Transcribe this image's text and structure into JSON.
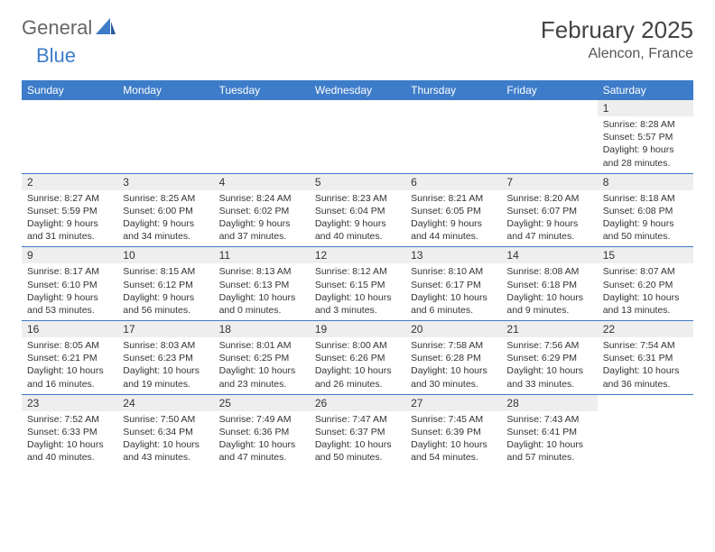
{
  "logo": {
    "general": "General",
    "blue": "Blue"
  },
  "title": {
    "monthYear": "February 2025",
    "location": "Alencon, France"
  },
  "dayNames": [
    "Sunday",
    "Monday",
    "Tuesday",
    "Wednesday",
    "Thursday",
    "Friday",
    "Saturday"
  ],
  "colors": {
    "headerBg": "#3d7cc9",
    "headerText": "#ffffff",
    "dayNumBg": "#eeeeee",
    "weekBorder": "#3d7cc9",
    "textColor": "#333333",
    "logoGray": "#666666",
    "logoBlue": "#3d7cc9"
  },
  "labels": {
    "sunrise": "Sunrise:",
    "sunset": "Sunset:",
    "daylight": "Daylight:"
  },
  "weeks": [
    [
      {
        "empty": true
      },
      {
        "empty": true
      },
      {
        "empty": true
      },
      {
        "empty": true
      },
      {
        "empty": true
      },
      {
        "empty": true
      },
      {
        "day": "1",
        "sunrise": "8:28 AM",
        "sunset": "5:57 PM",
        "daylight": "9 hours and 28 minutes."
      }
    ],
    [
      {
        "day": "2",
        "sunrise": "8:27 AM",
        "sunset": "5:59 PM",
        "daylight": "9 hours and 31 minutes."
      },
      {
        "day": "3",
        "sunrise": "8:25 AM",
        "sunset": "6:00 PM",
        "daylight": "9 hours and 34 minutes."
      },
      {
        "day": "4",
        "sunrise": "8:24 AM",
        "sunset": "6:02 PM",
        "daylight": "9 hours and 37 minutes."
      },
      {
        "day": "5",
        "sunrise": "8:23 AM",
        "sunset": "6:04 PM",
        "daylight": "9 hours and 40 minutes."
      },
      {
        "day": "6",
        "sunrise": "8:21 AM",
        "sunset": "6:05 PM",
        "daylight": "9 hours and 44 minutes."
      },
      {
        "day": "7",
        "sunrise": "8:20 AM",
        "sunset": "6:07 PM",
        "daylight": "9 hours and 47 minutes."
      },
      {
        "day": "8",
        "sunrise": "8:18 AM",
        "sunset": "6:08 PM",
        "daylight": "9 hours and 50 minutes."
      }
    ],
    [
      {
        "day": "9",
        "sunrise": "8:17 AM",
        "sunset": "6:10 PM",
        "daylight": "9 hours and 53 minutes."
      },
      {
        "day": "10",
        "sunrise": "8:15 AM",
        "sunset": "6:12 PM",
        "daylight": "9 hours and 56 minutes."
      },
      {
        "day": "11",
        "sunrise": "8:13 AM",
        "sunset": "6:13 PM",
        "daylight": "10 hours and 0 minutes."
      },
      {
        "day": "12",
        "sunrise": "8:12 AM",
        "sunset": "6:15 PM",
        "daylight": "10 hours and 3 minutes."
      },
      {
        "day": "13",
        "sunrise": "8:10 AM",
        "sunset": "6:17 PM",
        "daylight": "10 hours and 6 minutes."
      },
      {
        "day": "14",
        "sunrise": "8:08 AM",
        "sunset": "6:18 PM",
        "daylight": "10 hours and 9 minutes."
      },
      {
        "day": "15",
        "sunrise": "8:07 AM",
        "sunset": "6:20 PM",
        "daylight": "10 hours and 13 minutes."
      }
    ],
    [
      {
        "day": "16",
        "sunrise": "8:05 AM",
        "sunset": "6:21 PM",
        "daylight": "10 hours and 16 minutes."
      },
      {
        "day": "17",
        "sunrise": "8:03 AM",
        "sunset": "6:23 PM",
        "daylight": "10 hours and 19 minutes."
      },
      {
        "day": "18",
        "sunrise": "8:01 AM",
        "sunset": "6:25 PM",
        "daylight": "10 hours and 23 minutes."
      },
      {
        "day": "19",
        "sunrise": "8:00 AM",
        "sunset": "6:26 PM",
        "daylight": "10 hours and 26 minutes."
      },
      {
        "day": "20",
        "sunrise": "7:58 AM",
        "sunset": "6:28 PM",
        "daylight": "10 hours and 30 minutes."
      },
      {
        "day": "21",
        "sunrise": "7:56 AM",
        "sunset": "6:29 PM",
        "daylight": "10 hours and 33 minutes."
      },
      {
        "day": "22",
        "sunrise": "7:54 AM",
        "sunset": "6:31 PM",
        "daylight": "10 hours and 36 minutes."
      }
    ],
    [
      {
        "day": "23",
        "sunrise": "7:52 AM",
        "sunset": "6:33 PM",
        "daylight": "10 hours and 40 minutes."
      },
      {
        "day": "24",
        "sunrise": "7:50 AM",
        "sunset": "6:34 PM",
        "daylight": "10 hours and 43 minutes."
      },
      {
        "day": "25",
        "sunrise": "7:49 AM",
        "sunset": "6:36 PM",
        "daylight": "10 hours and 47 minutes."
      },
      {
        "day": "26",
        "sunrise": "7:47 AM",
        "sunset": "6:37 PM",
        "daylight": "10 hours and 50 minutes."
      },
      {
        "day": "27",
        "sunrise": "7:45 AM",
        "sunset": "6:39 PM",
        "daylight": "10 hours and 54 minutes."
      },
      {
        "day": "28",
        "sunrise": "7:43 AM",
        "sunset": "6:41 PM",
        "daylight": "10 hours and 57 minutes."
      },
      {
        "empty": true
      }
    ]
  ]
}
